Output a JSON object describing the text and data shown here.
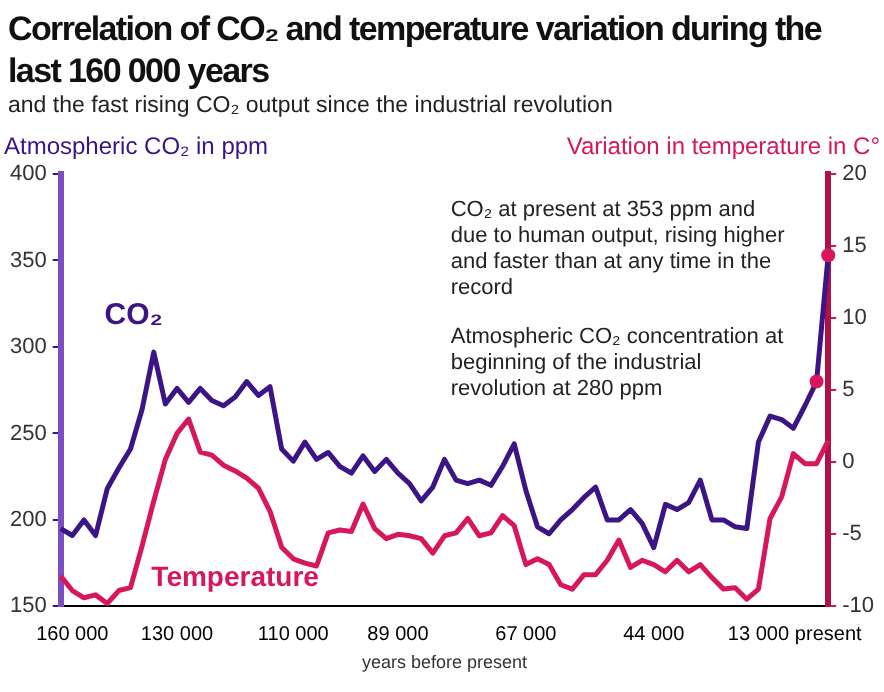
{
  "chart_data": {
    "type": "line",
    "title": "Correlation of CO₂ and temperature variation during the last 160 000 years",
    "subtitle": "and the fast rising CO₂ output since the industrial revolution",
    "xlabel": "years before present",
    "ylabel": "Atmospheric CO₂ in ppm",
    "y2label": "Variation in temperature in C°",
    "categories": [
      null,
      "160 000",
      null,
      null,
      null,
      null,
      null,
      null,
      null,
      null,
      "130 000",
      null,
      null,
      null,
      null,
      null,
      null,
      null,
      null,
      null,
      "110 000",
      null,
      null,
      null,
      null,
      null,
      null,
      null,
      null,
      "89 000",
      null,
      null,
      null,
      null,
      null,
      null,
      null,
      null,
      null,
      null,
      "67 000",
      null,
      null,
      null,
      null,
      null,
      null,
      null,
      null,
      null,
      null,
      "44 000",
      null,
      null,
      null,
      null,
      null,
      null,
      null,
      null,
      "13 000",
      null,
      null,
      null,
      null,
      null,
      "present"
    ],
    "series": [
      {
        "name": "CO₂",
        "color": "#3b1585",
        "values": [
          195,
          191,
          200,
          191,
          218,
          230,
          241,
          264,
          297,
          267,
          276,
          268,
          276,
          269,
          266,
          271,
          280,
          272,
          277,
          241,
          234,
          245,
          235,
          239,
          231,
          227,
          237,
          228,
          235,
          227,
          221,
          211,
          219,
          235,
          223,
          221,
          223,
          220,
          231,
          244,
          217,
          196,
          192,
          200,
          206,
          213,
          219,
          200,
          200,
          206,
          198,
          184,
          209,
          206,
          210,
          223,
          200,
          200,
          196,
          195,
          245,
          260,
          258,
          253,
          266,
          280,
          353
        ]
      },
      {
        "name": "Temperature",
        "color": "#d6175e",
        "axis": "y2",
        "values": [
          -7.9,
          -8.9,
          -9.4,
          -9.2,
          -9.8,
          -8.9,
          -8.7,
          -5.8,
          -2.7,
          0.2,
          2.0,
          3.0,
          0.7,
          0.5,
          -0.2,
          -0.6,
          -1.1,
          -1.8,
          -3.4,
          -5.9,
          -6.7,
          -7.0,
          -7.2,
          -4.9,
          -4.7,
          -4.8,
          -2.9,
          -4.6,
          -5.3,
          -5.0,
          -5.1,
          -5.3,
          -6.3,
          -5.1,
          -4.9,
          -3.9,
          -5.1,
          -4.9,
          -3.7,
          -4.4,
          -7.1,
          -6.7,
          -7.1,
          -8.5,
          -8.8,
          -7.8,
          -7.8,
          -6.8,
          -5.4,
          -7.3,
          -6.8,
          -7.1,
          -7.6,
          -6.8,
          -7.6,
          -7.1,
          -8.0,
          -8.8,
          -8.7,
          -9.5,
          -8.8,
          -3.9,
          -2.4,
          0.6,
          -0.1,
          -0.1,
          1.5
        ]
      }
    ],
    "ylim": [
      150,
      400
    ],
    "yticks": [
      150,
      200,
      250,
      300,
      350,
      400
    ],
    "y2lim": [
      -10,
      20
    ],
    "y2ticks": [
      -10,
      -5,
      0,
      5,
      10,
      15,
      20
    ],
    "grid": false,
    "legend": false,
    "marker": "none",
    "line_style": "solid",
    "annotations": [
      {
        "text": "CO₂ at present at 353 ppm and due to human output, rising higher and faster than at any time in the record",
        "x": "present",
        "y": 353
      },
      "Atmospheric CO₂ concentration at beginning of the industrial revolution at 280 ppm"
    ]
  }
}
